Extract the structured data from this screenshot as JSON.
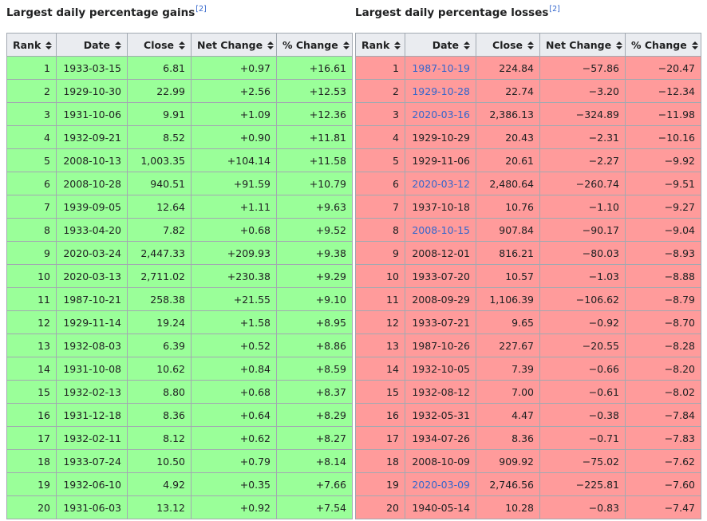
{
  "gains": {
    "title": "Largest daily percentage gains",
    "ref": "[2]",
    "headers": [
      "Rank",
      "Date",
      "Close",
      "Net Change",
      "% Change"
    ],
    "rows": [
      [
        "1",
        "1933-03-15",
        "6.81",
        "+0.97",
        "+16.61"
      ],
      [
        "2",
        "1929-10-30",
        "22.99",
        "+2.56",
        "+12.53"
      ],
      [
        "3",
        "1931-10-06",
        "9.91",
        "+1.09",
        "+12.36"
      ],
      [
        "4",
        "1932-09-21",
        "8.52",
        "+0.90",
        "+11.81"
      ],
      [
        "5",
        "2008-10-13",
        "1,003.35",
        "+104.14",
        "+11.58"
      ],
      [
        "6",
        "2008-10-28",
        "940.51",
        "+91.59",
        "+10.79"
      ],
      [
        "7",
        "1939-09-05",
        "12.64",
        "+1.11",
        "+9.63"
      ],
      [
        "8",
        "1933-04-20",
        "7.82",
        "+0.68",
        "+9.52"
      ],
      [
        "9",
        "2020-03-24",
        "2,447.33",
        "+209.93",
        "+9.38"
      ],
      [
        "10",
        "2020-03-13",
        "2,711.02",
        "+230.38",
        "+9.29"
      ],
      [
        "11",
        "1987-10-21",
        "258.38",
        "+21.55",
        "+9.10"
      ],
      [
        "12",
        "1929-11-14",
        "19.24",
        "+1.58",
        "+8.95"
      ],
      [
        "13",
        "1932-08-03",
        "6.39",
        "+0.52",
        "+8.86"
      ],
      [
        "14",
        "1931-10-08",
        "10.62",
        "+0.84",
        "+8.59"
      ],
      [
        "15",
        "1932-02-13",
        "8.80",
        "+0.68",
        "+8.37"
      ],
      [
        "16",
        "1931-12-18",
        "8.36",
        "+0.64",
        "+8.29"
      ],
      [
        "17",
        "1932-02-11",
        "8.12",
        "+0.62",
        "+8.27"
      ],
      [
        "18",
        "1933-07-24",
        "10.50",
        "+0.79",
        "+8.14"
      ],
      [
        "19",
        "1932-06-10",
        "4.92",
        "+0.35",
        "+7.66"
      ],
      [
        "20",
        "1931-06-03",
        "13.12",
        "+0.92",
        "+7.54"
      ]
    ]
  },
  "losses": {
    "title": "Largest daily percentage losses",
    "ref": "[2]",
    "headers": [
      "Rank",
      "Date",
      "Close",
      "Net Change",
      "% Change"
    ],
    "rows": [
      [
        "1",
        "1987-10-19",
        "224.84",
        "−57.86",
        "−20.47"
      ],
      [
        "2",
        "1929-10-28",
        "22.74",
        "−3.20",
        "−12.34"
      ],
      [
        "3",
        "2020-03-16",
        "2,386.13",
        "−324.89",
        "−11.98"
      ],
      [
        "4",
        "1929-10-29",
        "20.43",
        "−2.31",
        "−10.16"
      ],
      [
        "5",
        "1929-11-06",
        "20.61",
        "−2.27",
        "−9.92"
      ],
      [
        "6",
        "2020-03-12",
        "2,480.64",
        "−260.74",
        "−9.51"
      ],
      [
        "7",
        "1937-10-18",
        "10.76",
        "−1.10",
        "−9.27"
      ],
      [
        "8",
        "2008-10-15",
        "907.84",
        "−90.17",
        "−9.04"
      ],
      [
        "9",
        "2008-12-01",
        "816.21",
        "−80.03",
        "−8.93"
      ],
      [
        "10",
        "1933-07-20",
        "10.57",
        "−1.03",
        "−8.88"
      ],
      [
        "11",
        "2008-09-29",
        "1,106.39",
        "−106.62",
        "−8.79"
      ],
      [
        "12",
        "1933-07-21",
        "9.65",
        "−0.92",
        "−8.70"
      ],
      [
        "13",
        "1987-10-26",
        "227.67",
        "−20.55",
        "−8.28"
      ],
      [
        "14",
        "1932-10-05",
        "7.39",
        "−0.66",
        "−8.20"
      ],
      [
        "15",
        "1932-08-12",
        "7.00",
        "−0.61",
        "−8.02"
      ],
      [
        "16",
        "1932-05-31",
        "4.47",
        "−0.38",
        "−7.84"
      ],
      [
        "17",
        "1934-07-26",
        "8.36",
        "−0.71",
        "−7.83"
      ],
      [
        "18",
        "2008-10-09",
        "909.92",
        "−75.02",
        "−7.62"
      ],
      [
        "19",
        "2020-03-09",
        "2,746.56",
        "−225.81",
        "−7.60"
      ],
      [
        "20",
        "1940-05-14",
        "10.28",
        "−0.83",
        "−7.47"
      ]
    ],
    "linked_rows": [
      0,
      1,
      2,
      5,
      7,
      18
    ]
  },
  "colors": {
    "gain_cell": "#9aff99",
    "loss_cell": "#ff9b9b",
    "header_bg": "#eaecf0",
    "border": "#a2a9b1",
    "link": "#3366cc"
  }
}
